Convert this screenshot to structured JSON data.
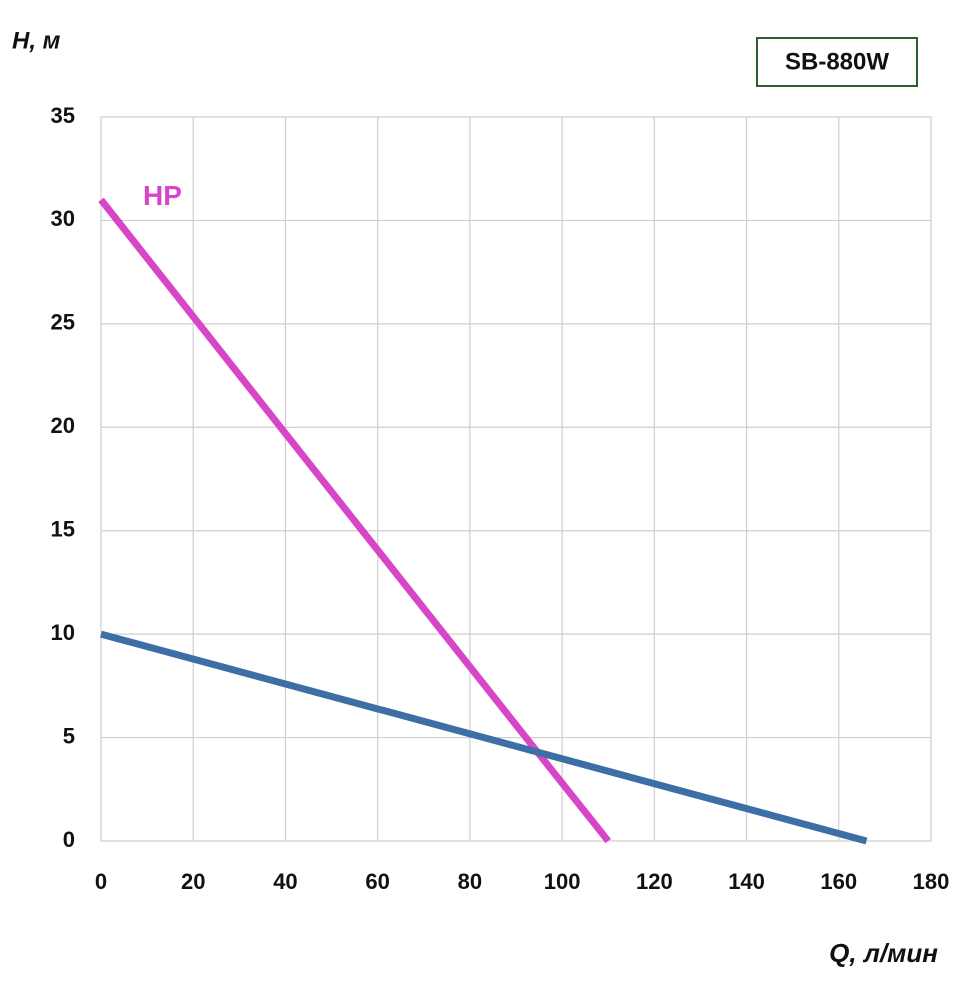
{
  "chart_data": {
    "type": "line",
    "title": "SB-880W",
    "x_label": "Q, л/мин",
    "y_label": "H, м",
    "xlim": [
      0,
      180
    ],
    "xticks": [
      0,
      20,
      40,
      60,
      80,
      100,
      120,
      140,
      160,
      180
    ],
    "ylim": [
      0,
      35
    ],
    "yticks": [
      0,
      5,
      10,
      15,
      20,
      25,
      30,
      35
    ],
    "grid": true,
    "series": [
      {
        "name": "HP",
        "color": "#d846c8",
        "x": [
          0,
          40,
          95,
          110
        ],
        "values": [
          31,
          19.7,
          4.2,
          0
        ]
      },
      {
        "color": "#3d6ea6",
        "x": [
          0,
          166
        ],
        "values": [
          10,
          0
        ]
      }
    ]
  }
}
